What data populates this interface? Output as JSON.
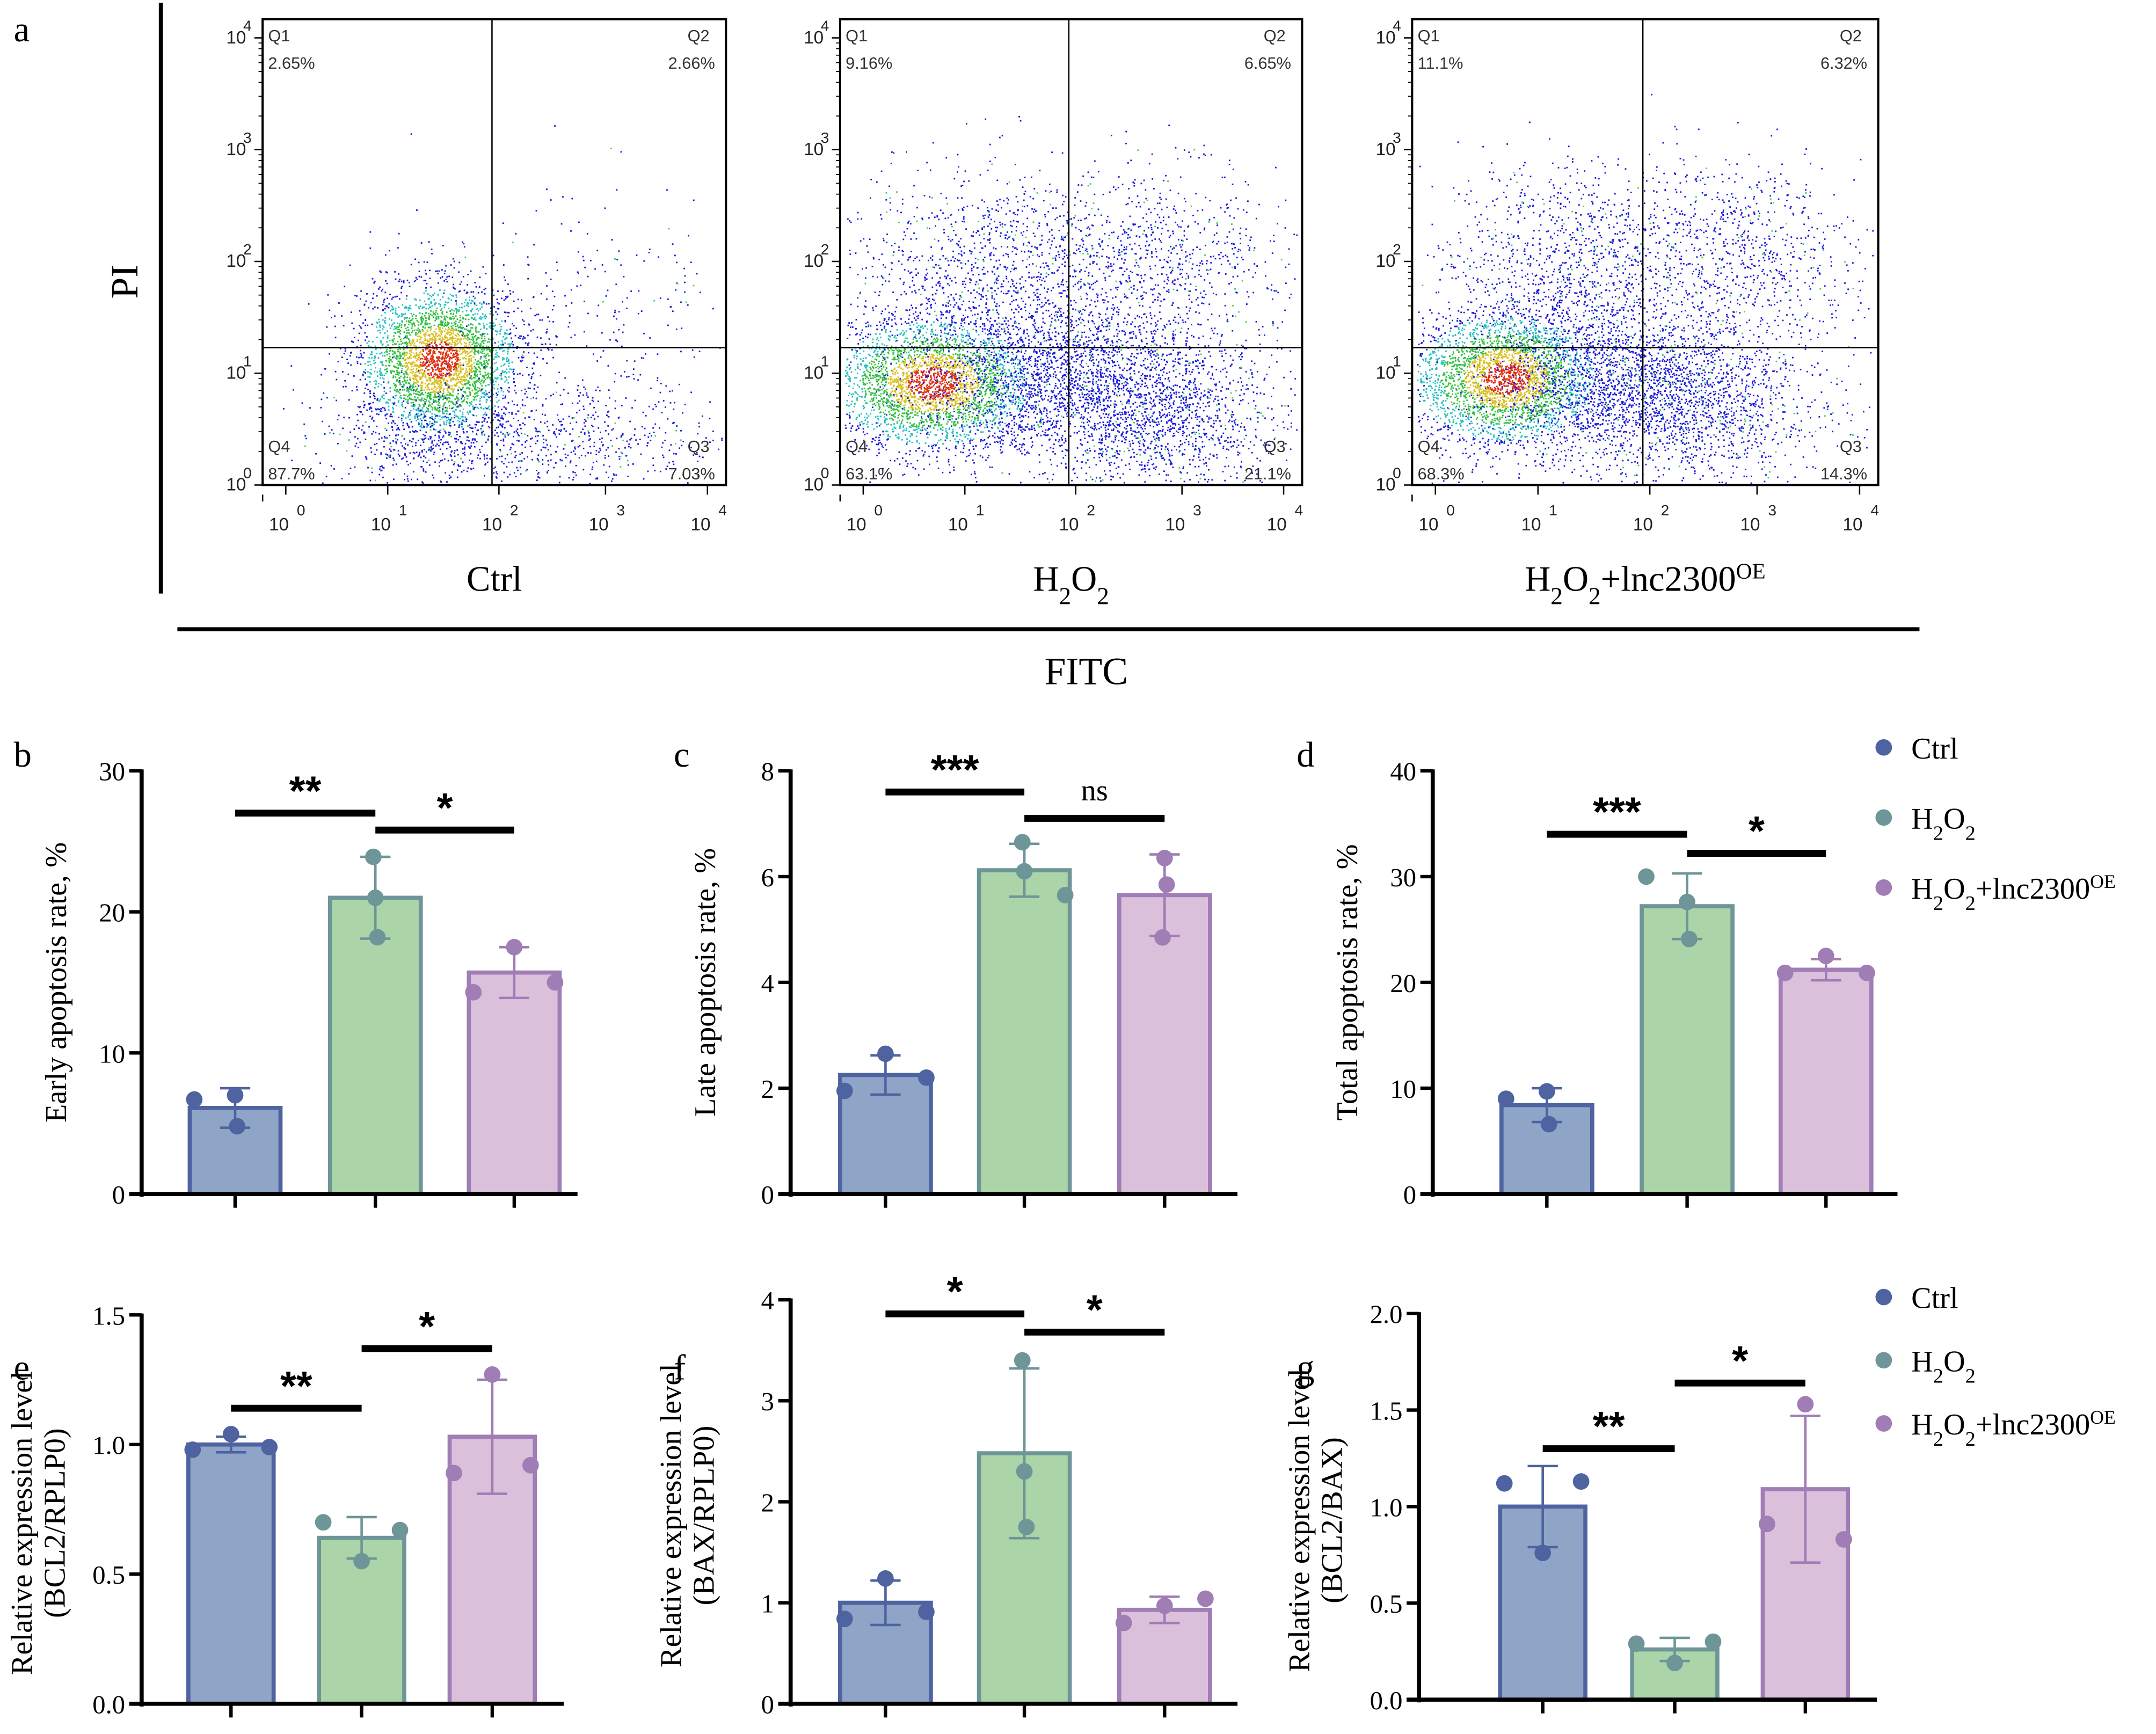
{
  "figure_labels": {
    "a": "a",
    "b": "b",
    "c": "c",
    "d": "d",
    "e": "e",
    "f": "f",
    "g": "g"
  },
  "panel_a": {
    "y_axis_label": "PI",
    "x_axis_label": "FITC",
    "tick_labels": [
      "10",
      "10",
      "10",
      "10",
      "10"
    ],
    "tick_exponents": [
      "0",
      "1",
      "2",
      "3",
      "4"
    ],
    "plots": [
      {
        "group": "Ctrl",
        "Q1": {
          "name": "Q1",
          "value": "2.65%"
        },
        "Q2": {
          "name": "Q2",
          "value": "2.66%"
        },
        "Q3": {
          "name": "Q3",
          "value": "7.03%"
        },
        "Q4": {
          "name": "Q4",
          "value": "87.7%"
        }
      },
      {
        "group": "H2O2",
        "Q1": {
          "name": "Q1",
          "value": "9.16%"
        },
        "Q2": {
          "name": "Q2",
          "value": "6.65%"
        },
        "Q3": {
          "name": "Q3",
          "value": "21.1%"
        },
        "Q4": {
          "name": "Q4",
          "value": "63.1%"
        }
      },
      {
        "group": "H2O2+lnc2300OE",
        "Q1": {
          "name": "Q1",
          "value": "11.1%"
        },
        "Q2": {
          "name": "Q2",
          "value": "6.32%"
        },
        "Q3": {
          "name": "Q3",
          "value": "14.3%"
        },
        "Q4": {
          "name": "Q4",
          "value": "68.3%"
        }
      }
    ],
    "group_titles": [
      {
        "main": "Ctrl",
        "parts": [
          [
            "Ctrl",
            ""
          ]
        ]
      },
      {
        "main": "H2O2",
        "parts": [
          [
            "H",
            ""
          ],
          [
            "2",
            "sub"
          ],
          [
            "O",
            ""
          ],
          [
            "2",
            "sub"
          ]
        ]
      },
      {
        "main": "H2O2+lnc2300OE",
        "parts": [
          [
            "H",
            ""
          ],
          [
            "2",
            "sub"
          ],
          [
            "O",
            ""
          ],
          [
            "2",
            "sub"
          ],
          [
            "+lnc2300",
            ""
          ],
          [
            "OE",
            "sup"
          ]
        ]
      }
    ]
  },
  "legend": {
    "items": [
      {
        "label": "Ctrl",
        "color": "#4e63a0"
      },
      {
        "label": "H2O2",
        "color": "#6e9598"
      },
      {
        "label": "H2O2+lnc2300OE",
        "color": "#a07db5"
      }
    ]
  },
  "colors": {
    "ctrl_fill": "#8fa5c7",
    "ctrl_stroke": "#4e63a0",
    "h2o2_fill": "#abd5a8",
    "h2o2_stroke": "#6e9598",
    "lnc_fill": "#dbc0dc",
    "lnc_stroke": "#a07db5"
  },
  "chart_data": [
    {
      "type": "bar",
      "panel": "b",
      "categories": [
        "Ctrl",
        "H2O2",
        "H2O2+lnc2300OE"
      ],
      "values": [
        6.1,
        21.0,
        15.7
      ],
      "error_sd": [
        1.4,
        2.9,
        1.8
      ],
      "points": [
        [
          6.7,
          7.0,
          4.8
        ],
        [
          23.9,
          21.0,
          18.2
        ],
        [
          14.3,
          17.5,
          15.0
        ]
      ],
      "ylabel": "Early apoptosis rate, %",
      "ylim": [
        0,
        30
      ],
      "yticks": [
        "0",
        "10",
        "20",
        "30"
      ],
      "significance": [
        {
          "from": 0,
          "to": 1,
          "label": "**",
          "y": 27.0
        },
        {
          "from": 1,
          "to": 2,
          "label": "*",
          "y": 25.8
        }
      ]
    },
    {
      "type": "bar",
      "panel": "c",
      "categories": [
        "Ctrl",
        "H2O2",
        "H2O2+lnc2300OE"
      ],
      "values": [
        2.25,
        6.12,
        5.65
      ],
      "error_sd": [
        0.37,
        0.5,
        0.77
      ],
      "points": [
        [
          1.95,
          2.65,
          2.2
        ],
        [
          6.65,
          6.1,
          5.65
        ],
        [
          4.85,
          6.35,
          5.85
        ]
      ],
      "ylabel": "Late apoptosis rate, %",
      "ylim": [
        0,
        8
      ],
      "yticks": [
        "0",
        "2",
        "4",
        "6",
        "8"
      ],
      "significance": [
        {
          "from": 0,
          "to": 1,
          "label": "***",
          "y": 7.6
        },
        {
          "from": 1,
          "to": 2,
          "label": "ns",
          "y": 7.1
        }
      ]
    },
    {
      "type": "bar",
      "panel": "d",
      "categories": [
        "Ctrl",
        "H2O2",
        "H2O2+lnc2300OE"
      ],
      "values": [
        8.4,
        27.2,
        21.2
      ],
      "error_sd": [
        1.6,
        3.1,
        1.0
      ],
      "points": [
        [
          9.0,
          9.7,
          6.6
        ],
        [
          30.0,
          27.6,
          24.1
        ],
        [
          20.9,
          22.5,
          20.9
        ]
      ],
      "ylabel": "Total apoptosis rate, %",
      "ylim": [
        0,
        40
      ],
      "yticks": [
        "0",
        "10",
        "20",
        "30",
        "40"
      ],
      "significance": [
        {
          "from": 0,
          "to": 1,
          "label": "***",
          "y": 34.0
        },
        {
          "from": 1,
          "to": 2,
          "label": "*",
          "y": 32.2
        }
      ]
    },
    {
      "type": "bar",
      "panel": "e",
      "categories": [
        "Ctrl",
        "H2O2",
        "H2O2+lnc2300OE"
      ],
      "values": [
        1.0,
        0.64,
        1.03
      ],
      "error_sd": [
        0.03,
        0.08,
        0.22
      ],
      "points": [
        [
          0.98,
          1.04,
          0.99
        ],
        [
          0.7,
          0.55,
          0.67
        ],
        [
          0.89,
          1.27,
          0.92
        ]
      ],
      "ylabel": "Relative expression level",
      "ylabel2": "(BCL2/RPLP0)",
      "ylim": [
        0,
        1.5
      ],
      "yticks": [
        "0.0",
        "0.5",
        "1.0",
        "1.5"
      ],
      "significance": [
        {
          "from": 0,
          "to": 1,
          "label": "**",
          "y": 1.14
        },
        {
          "from": 1,
          "to": 2,
          "label": "*",
          "y": 1.37
        }
      ]
    },
    {
      "type": "bar",
      "panel": "f",
      "categories": [
        "Ctrl",
        "H2O2",
        "H2O2+lnc2300OE"
      ],
      "values": [
        1.0,
        2.48,
        0.93
      ],
      "error_sd": [
        0.22,
        0.84,
        0.13
      ],
      "points": [
        [
          0.84,
          1.24,
          0.91
        ],
        [
          3.4,
          2.3,
          1.75
        ],
        [
          0.8,
          0.97,
          1.04
        ]
      ],
      "ylabel": "Relative expression level",
      "ylabel2": "(BAX/RPLP0)",
      "ylim": [
        0,
        4
      ],
      "yticks": [
        "0",
        "1",
        "2",
        "3",
        "4"
      ],
      "significance": [
        {
          "from": 0,
          "to": 1,
          "label": "*",
          "y": 3.86
        },
        {
          "from": 1,
          "to": 2,
          "label": "*",
          "y": 3.68
        }
      ]
    },
    {
      "type": "bar",
      "panel": "g",
      "categories": [
        "Ctrl",
        "H2O2",
        "H2O2+lnc2300OE"
      ],
      "values": [
        1.0,
        0.26,
        1.09
      ],
      "error_sd": [
        0.21,
        0.06,
        0.38
      ],
      "points": [
        [
          1.12,
          0.76,
          1.13
        ],
        [
          0.29,
          0.19,
          0.3
        ],
        [
          0.91,
          1.53,
          0.83
        ]
      ],
      "ylabel": "Relative expression level",
      "ylabel2": "(BCL2/BAX)",
      "ylim": [
        0,
        2.0
      ],
      "yticks": [
        "0.0",
        "0.5",
        "1.0",
        "1.5",
        "2.0"
      ],
      "significance": [
        {
          "from": 0,
          "to": 1,
          "label": "**",
          "y": 1.3
        },
        {
          "from": 1,
          "to": 2,
          "label": "*",
          "y": 1.64
        }
      ]
    }
  ]
}
